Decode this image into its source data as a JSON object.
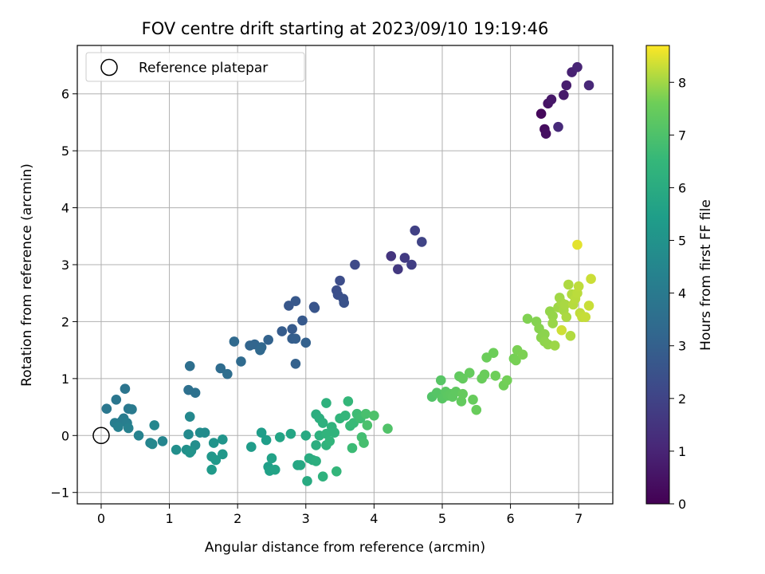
{
  "chart_data": {
    "type": "scatter",
    "title": "FOV centre drift starting at 2023/09/10 19:19:46",
    "xlabel": "Angular distance from reference (arcmin)",
    "ylabel": "Rotation from reference (arcmin)",
    "xlim": [
      -0.35,
      7.5
    ],
    "ylim": [
      -1.2,
      6.85
    ],
    "xticks": [
      0,
      1,
      2,
      3,
      4,
      5,
      6,
      7
    ],
    "yticks": [
      -1,
      0,
      1,
      2,
      3,
      4,
      5,
      6
    ],
    "grid": true,
    "legend": {
      "placement": "top-left",
      "entries": [
        "Reference platepar"
      ]
    },
    "reference_point": {
      "x": 0,
      "y": 0
    },
    "colorbar": {
      "label": "Hours from first FF file",
      "colormap": "viridis",
      "range": [
        0,
        8.7
      ],
      "ticks": [
        0,
        1,
        2,
        3,
        4,
        5,
        6,
        7,
        8
      ]
    },
    "points": [
      [
        6.45,
        5.65,
        0.2
      ],
      [
        6.5,
        5.38,
        0.3
      ],
      [
        6.52,
        5.3,
        0.4
      ],
      [
        6.55,
        5.83,
        0.5
      ],
      [
        6.6,
        5.9,
        0.6
      ],
      [
        6.78,
        5.98,
        0.7
      ],
      [
        6.82,
        6.15,
        0.8
      ],
      [
        6.9,
        6.38,
        0.9
      ],
      [
        6.98,
        6.47,
        1.0
      ],
      [
        7.15,
        6.15,
        1.1
      ],
      [
        6.7,
        5.42,
        1.15
      ],
      [
        4.25,
        3.15,
        1.5
      ],
      [
        4.35,
        2.92,
        1.6
      ],
      [
        4.45,
        3.12,
        1.7
      ],
      [
        4.55,
        3.0,
        1.8
      ],
      [
        4.6,
        3.6,
        1.9
      ],
      [
        4.7,
        3.4,
        2.0
      ],
      [
        3.72,
        3.0,
        2.2
      ],
      [
        3.5,
        2.72,
        2.3
      ],
      [
        3.45,
        2.55,
        2.35
      ],
      [
        3.47,
        2.47,
        2.4
      ],
      [
        3.55,
        2.4,
        2.45
      ],
      [
        3.56,
        2.33,
        2.5
      ],
      [
        3.12,
        2.26,
        2.55
      ],
      [
        3.13,
        2.24,
        2.6
      ],
      [
        2.75,
        2.28,
        2.65
      ],
      [
        2.85,
        2.36,
        2.7
      ],
      [
        2.95,
        2.02,
        2.75
      ],
      [
        2.8,
        1.87,
        2.8
      ],
      [
        2.65,
        1.83,
        2.85
      ],
      [
        2.8,
        1.7,
        2.9
      ],
      [
        2.85,
        1.7,
        2.95
      ],
      [
        3.0,
        1.63,
        3.0
      ],
      [
        2.85,
        1.26,
        3.05
      ],
      [
        2.45,
        1.68,
        3.1
      ],
      [
        2.18,
        1.58,
        3.15
      ],
      [
        2.25,
        1.6,
        3.2
      ],
      [
        2.35,
        1.55,
        3.25
      ],
      [
        2.33,
        1.5,
        3.3
      ],
      [
        1.95,
        1.65,
        3.35
      ],
      [
        2.05,
        1.3,
        3.4
      ],
      [
        1.75,
        1.18,
        3.45
      ],
      [
        1.85,
        1.08,
        3.5
      ],
      [
        1.3,
        1.22,
        3.55
      ],
      [
        1.28,
        0.8,
        3.6
      ],
      [
        1.38,
        0.75,
        3.65
      ],
      [
        0.35,
        0.82,
        3.8
      ],
      [
        0.22,
        0.63,
        3.85
      ],
      [
        0.08,
        0.47,
        3.9
      ],
      [
        0.4,
        0.47,
        3.95
      ],
      [
        0.45,
        0.46,
        4.0
      ],
      [
        0.33,
        0.3,
        4.05
      ],
      [
        0.3,
        0.25,
        4.1
      ],
      [
        0.2,
        0.22,
        4.15
      ],
      [
        0.38,
        0.22,
        4.2
      ],
      [
        0.25,
        0.15,
        4.25
      ],
      [
        0.4,
        0.13,
        4.3
      ],
      [
        0.55,
        0.0,
        4.35
      ],
      [
        0.72,
        -0.13,
        4.4
      ],
      [
        0.9,
        -0.1,
        4.45
      ],
      [
        0.78,
        0.18,
        4.5
      ],
      [
        0.75,
        -0.15,
        4.55
      ],
      [
        1.3,
        0.33,
        4.6
      ],
      [
        1.28,
        0.02,
        4.65
      ],
      [
        1.52,
        0.05,
        4.7
      ],
      [
        1.45,
        0.05,
        4.75
      ],
      [
        1.38,
        -0.17,
        4.8
      ],
      [
        1.1,
        -0.25,
        4.85
      ],
      [
        1.25,
        -0.25,
        4.9
      ],
      [
        1.32,
        -0.27,
        4.95
      ],
      [
        1.3,
        -0.3,
        5.0
      ],
      [
        1.65,
        -0.13,
        5.05
      ],
      [
        1.78,
        -0.07,
        5.1
      ],
      [
        1.62,
        -0.37,
        5.15
      ],
      [
        1.78,
        -0.33,
        5.2
      ],
      [
        1.68,
        -0.43,
        5.25
      ],
      [
        1.62,
        -0.6,
        5.3
      ],
      [
        2.2,
        -0.2,
        5.35
      ],
      [
        2.35,
        0.05,
        5.4
      ],
      [
        2.42,
        -0.08,
        5.45
      ],
      [
        2.45,
        -0.55,
        5.5
      ],
      [
        2.47,
        -0.62,
        5.55
      ],
      [
        2.5,
        -0.4,
        5.6
      ],
      [
        2.55,
        -0.6,
        5.65
      ],
      [
        2.62,
        -0.03,
        5.7
      ],
      [
        2.78,
        0.03,
        5.75
      ],
      [
        2.88,
        -0.52,
        5.8
      ],
      [
        2.92,
        -0.52,
        5.85
      ],
      [
        3.0,
        0.0,
        5.9
      ],
      [
        3.02,
        -0.8,
        5.95
      ],
      [
        3.05,
        -0.4,
        6.0
      ],
      [
        3.1,
        -0.43,
        6.05
      ],
      [
        3.15,
        -0.17,
        6.1
      ],
      [
        3.15,
        -0.45,
        6.15
      ],
      [
        3.2,
        -0.0,
        6.2
      ],
      [
        3.25,
        -0.72,
        6.25
      ],
      [
        3.3,
        -0.17,
        6.3
      ],
      [
        3.3,
        0.03,
        6.35
      ],
      [
        3.35,
        -0.1,
        6.4
      ],
      [
        3.45,
        -0.63,
        6.45
      ],
      [
        3.15,
        0.37,
        6.1
      ],
      [
        3.2,
        0.3,
        6.15
      ],
      [
        3.25,
        0.22,
        6.2
      ],
      [
        3.3,
        0.57,
        6.25
      ],
      [
        3.38,
        0.15,
        6.3
      ],
      [
        3.42,
        0.05,
        6.35
      ],
      [
        3.5,
        0.3,
        6.4
      ],
      [
        3.58,
        0.35,
        6.45
      ],
      [
        3.62,
        0.6,
        6.5
      ],
      [
        3.65,
        0.17,
        6.55
      ],
      [
        3.7,
        0.22,
        6.6
      ],
      [
        3.68,
        -0.22,
        6.65
      ],
      [
        3.75,
        0.38,
        6.7
      ],
      [
        3.8,
        0.3,
        6.75
      ],
      [
        3.82,
        -0.03,
        6.8
      ],
      [
        3.85,
        -0.13,
        6.85
      ],
      [
        3.88,
        0.38,
        6.9
      ],
      [
        3.9,
        0.18,
        6.95
      ],
      [
        4.0,
        0.35,
        7.0
      ],
      [
        4.2,
        0.12,
        7.05
      ],
      [
        4.85,
        0.68,
        7.1
      ],
      [
        4.92,
        0.75,
        7.15
      ],
      [
        4.98,
        0.97,
        7.2
      ],
      [
        5.0,
        0.65,
        7.22
      ],
      [
        5.05,
        0.77,
        7.25
      ],
      [
        5.08,
        0.7,
        7.27
      ],
      [
        5.12,
        0.73,
        7.3
      ],
      [
        5.15,
        0.68,
        7.32
      ],
      [
        5.2,
        0.77,
        7.35
      ],
      [
        5.25,
        1.04,
        7.37
      ],
      [
        5.28,
        0.6,
        7.4
      ],
      [
        5.3,
        1.0,
        7.42
      ],
      [
        5.3,
        0.73,
        7.44
      ],
      [
        5.4,
        1.1,
        7.46
      ],
      [
        5.45,
        0.63,
        7.48
      ],
      [
        5.5,
        0.45,
        7.5
      ],
      [
        5.58,
        1.0,
        7.52
      ],
      [
        5.62,
        1.07,
        7.54
      ],
      [
        5.65,
        1.37,
        7.56
      ],
      [
        5.75,
        1.45,
        7.58
      ],
      [
        5.78,
        1.05,
        7.6
      ],
      [
        5.9,
        0.88,
        7.62
      ],
      [
        5.95,
        0.97,
        7.64
      ],
      [
        6.05,
        1.35,
        7.66
      ],
      [
        6.08,
        1.32,
        7.68
      ],
      [
        6.1,
        1.5,
        7.7
      ],
      [
        6.18,
        1.42,
        7.72
      ],
      [
        6.25,
        2.05,
        7.75
      ],
      [
        6.38,
        2.0,
        7.78
      ],
      [
        6.42,
        1.88,
        7.8
      ],
      [
        6.45,
        1.72,
        7.82
      ],
      [
        6.5,
        1.78,
        7.84
      ],
      [
        6.5,
        1.65,
        7.86
      ],
      [
        6.55,
        1.6,
        7.88
      ],
      [
        6.58,
        2.18,
        7.9
      ],
      [
        6.62,
        2.1,
        7.92
      ],
      [
        6.62,
        1.97,
        7.94
      ],
      [
        6.65,
        1.58,
        7.96
      ],
      [
        6.7,
        2.25,
        7.98
      ],
      [
        6.72,
        2.42,
        8.0
      ],
      [
        6.75,
        2.33,
        8.02
      ],
      [
        6.78,
        2.2,
        8.04
      ],
      [
        6.8,
        2.3,
        8.06
      ],
      [
        6.82,
        2.08,
        8.08
      ],
      [
        6.85,
        2.65,
        8.1
      ],
      [
        6.88,
        1.75,
        8.12
      ],
      [
        6.9,
        2.48,
        8.14
      ],
      [
        6.92,
        2.3,
        8.16
      ],
      [
        6.95,
        2.4,
        8.18
      ],
      [
        6.98,
        2.5,
        8.2
      ],
      [
        7.0,
        2.62,
        8.22
      ],
      [
        7.02,
        2.15,
        8.24
      ],
      [
        7.05,
        2.08,
        8.26
      ],
      [
        7.1,
        2.08,
        8.28
      ],
      [
        7.15,
        2.28,
        8.3
      ],
      [
        7.18,
        2.75,
        8.32
      ],
      [
        6.75,
        1.85,
        8.34
      ],
      [
        6.98,
        3.35,
        8.5
      ]
    ]
  }
}
